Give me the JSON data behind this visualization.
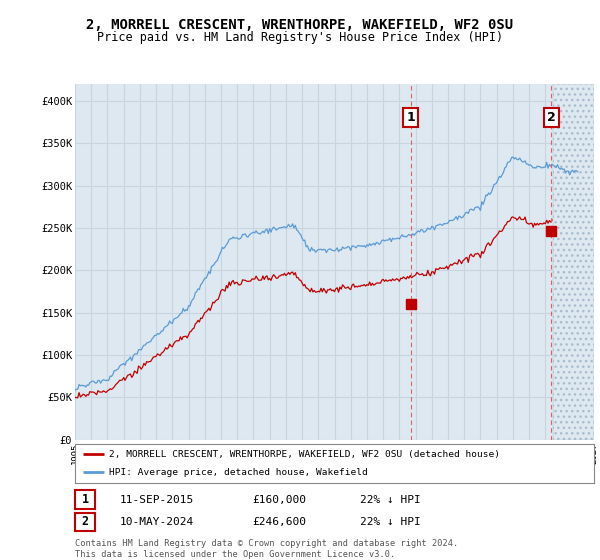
{
  "title": "2, MORRELL CRESCENT, WRENTHORPE, WAKEFIELD, WF2 0SU",
  "subtitle": "Price paid vs. HM Land Registry's House Price Index (HPI)",
  "ylabel_ticks": [
    "£0",
    "£50K",
    "£100K",
    "£150K",
    "£200K",
    "£250K",
    "£300K",
    "£350K",
    "£400K"
  ],
  "ytick_vals": [
    0,
    50000,
    100000,
    150000,
    200000,
    250000,
    300000,
    350000,
    400000
  ],
  "ylim": [
    0,
    420000
  ],
  "xlim_start": 1995.0,
  "xlim_end": 2027.0,
  "hpi_color": "#5b9bd5",
  "price_color": "#c00000",
  "vline_color": "#e06060",
  "point1_x": 2015.7,
  "point1_y": 160000,
  "point2_x": 2024.37,
  "point2_y": 246600,
  "hatch_start": 2024.45,
  "legend_label1": "2, MORRELL CRESCENT, WRENTHORPE, WAKEFIELD, WF2 0SU (detached house)",
  "legend_label2": "HPI: Average price, detached house, Wakefield",
  "annotation1_label": "1",
  "annotation2_label": "2",
  "table_row1": [
    "1",
    "11-SEP-2015",
    "£160,000",
    "22% ↓ HPI"
  ],
  "table_row2": [
    "2",
    "10-MAY-2024",
    "£246,600",
    "22% ↓ HPI"
  ],
  "footer": "Contains HM Land Registry data © Crown copyright and database right 2024.\nThis data is licensed under the Open Government Licence v3.0.",
  "background_color": "#ffffff",
  "grid_color": "#c8d4e0",
  "plot_bg_color": "#dde8f0"
}
